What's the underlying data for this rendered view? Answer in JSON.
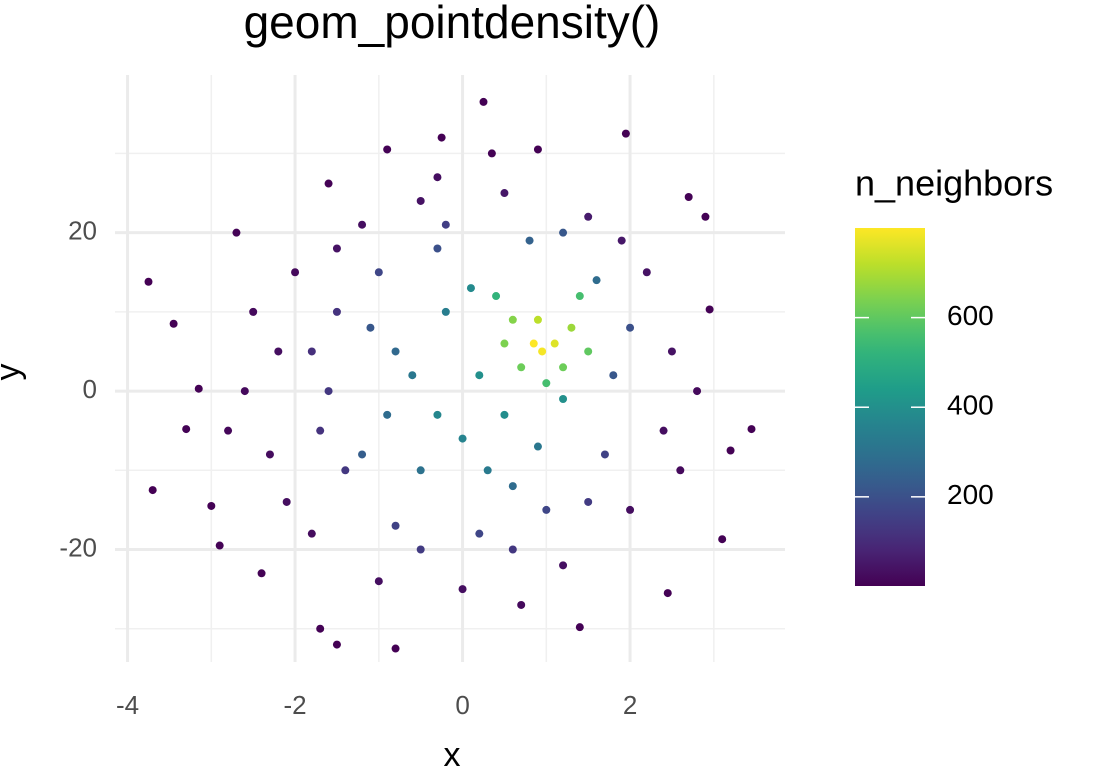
{
  "chart_data": {
    "type": "scatter",
    "title": "geom_pointdensity()",
    "x_label": "x",
    "y_label": "y",
    "xlim": [
      -4.15,
      3.85
    ],
    "xticks": [
      -4,
      -2,
      0,
      2
    ],
    "xminorticks": [
      -3,
      -1,
      1,
      3
    ],
    "ylim": [
      -34.2,
      39.9
    ],
    "yticks": [
      -20,
      0,
      20
    ],
    "yminorticks": [
      -30,
      -10,
      10,
      30
    ],
    "grid": true,
    "color_scale": "viridis",
    "color_title": "n_neighbors",
    "color_lim": [
      1,
      800
    ],
    "color_ticks": [
      200,
      400,
      600
    ],
    "x": [
      -3.75,
      -3.45,
      -3.7,
      -3.15,
      -3.0,
      -2.9,
      -3.3,
      -2.7,
      -2.4,
      -1.5,
      -0.8,
      0.25,
      -0.25,
      0.9,
      1.95,
      2.7,
      2.9,
      3.1,
      3.45,
      3.2,
      2.45,
      1.4,
      2.95,
      -1.7,
      -1.6,
      -0.9,
      0.35,
      -2.5,
      -2.3,
      -2.0,
      -1.8,
      -2.6,
      -1.2,
      -0.5,
      0.5,
      1.5,
      2.2,
      2.5,
      2.4,
      2.0,
      1.2,
      0,
      -1.0,
      -2.1,
      -2.2,
      -1.5,
      1.9,
      2.6,
      -2.8,
      2.8,
      0.7,
      -0.3,
      -1.5,
      -1.6,
      -1.4,
      -0.8,
      0.2,
      1.0,
      1.7,
      1.8,
      1.6,
      0.8,
      -0.3,
      -1.0,
      -1.8,
      -1.7,
      0.6,
      1.5,
      -0.5,
      2.0,
      -0.2,
      1.2,
      -0.8,
      -0.9,
      -0.5,
      0.3,
      0.9,
      1.2,
      -0.2,
      0.2,
      -0.3,
      0.0,
      0.5,
      -0.6,
      0.1,
      -1.1,
      -1.2,
      0.6,
      0.4,
      1.4,
      1.5,
      0.5,
      0.9,
      0.7,
      1.2,
      1.1,
      0.85,
      0.95,
      1.3,
      0.6,
      1.0
    ],
    "y": [
      13.8,
      8.5,
      -12.5,
      0.3,
      -14.5,
      -19.5,
      -4.8,
      20,
      -23,
      -32,
      -32.5,
      36.5,
      32,
      30.5,
      32.5,
      24.5,
      22,
      -18.7,
      -4.8,
      -7.5,
      -25.5,
      -29.8,
      10.3,
      -30,
      26.2,
      30.5,
      30,
      10,
      -8,
      15,
      -18,
      0,
      21,
      24,
      25,
      22,
      15,
      5,
      -5,
      -15,
      -22,
      -25,
      -24,
      -14,
      5,
      18,
      19,
      -10,
      -5,
      0,
      -27,
      27,
      10,
      0,
      -10,
      -17,
      -18,
      -15,
      -8,
      2,
      14,
      19,
      18,
      15,
      5,
      -5,
      -20,
      -14,
      -20,
      8,
      21,
      20,
      5,
      -3,
      -10,
      -10,
      -7,
      -1,
      10,
      2,
      -3,
      -6,
      -3,
      2,
      13,
      8,
      -8,
      -12,
      12,
      12,
      5,
      6,
      9,
      3,
      3,
      6,
      6,
      5,
      8,
      9,
      1
    ],
    "n_neighbors": [
      2,
      3,
      2,
      3,
      3,
      4,
      4,
      5,
      4,
      2,
      2,
      1,
      2,
      2,
      2,
      3,
      3,
      3,
      3,
      3,
      3,
      3,
      4,
      3,
      4,
      3,
      3,
      20,
      25,
      20,
      25,
      20,
      30,
      40,
      50,
      60,
      40,
      40,
      30,
      30,
      35,
      30,
      30,
      30,
      30,
      40,
      50,
      20,
      15,
      20,
      20,
      30,
      120,
      130,
      130,
      160,
      170,
      170,
      160,
      220,
      280,
      250,
      200,
      170,
      110,
      120,
      130,
      140,
      140,
      200,
      150,
      220,
      270,
      280,
      300,
      330,
      320,
      400,
      340,
      400,
      370,
      360,
      390,
      320,
      380,
      220,
      240,
      280,
      520,
      560,
      600,
      640,
      720,
      620,
      620,
      760,
      800,
      790,
      680,
      650,
      560
    ]
  }
}
